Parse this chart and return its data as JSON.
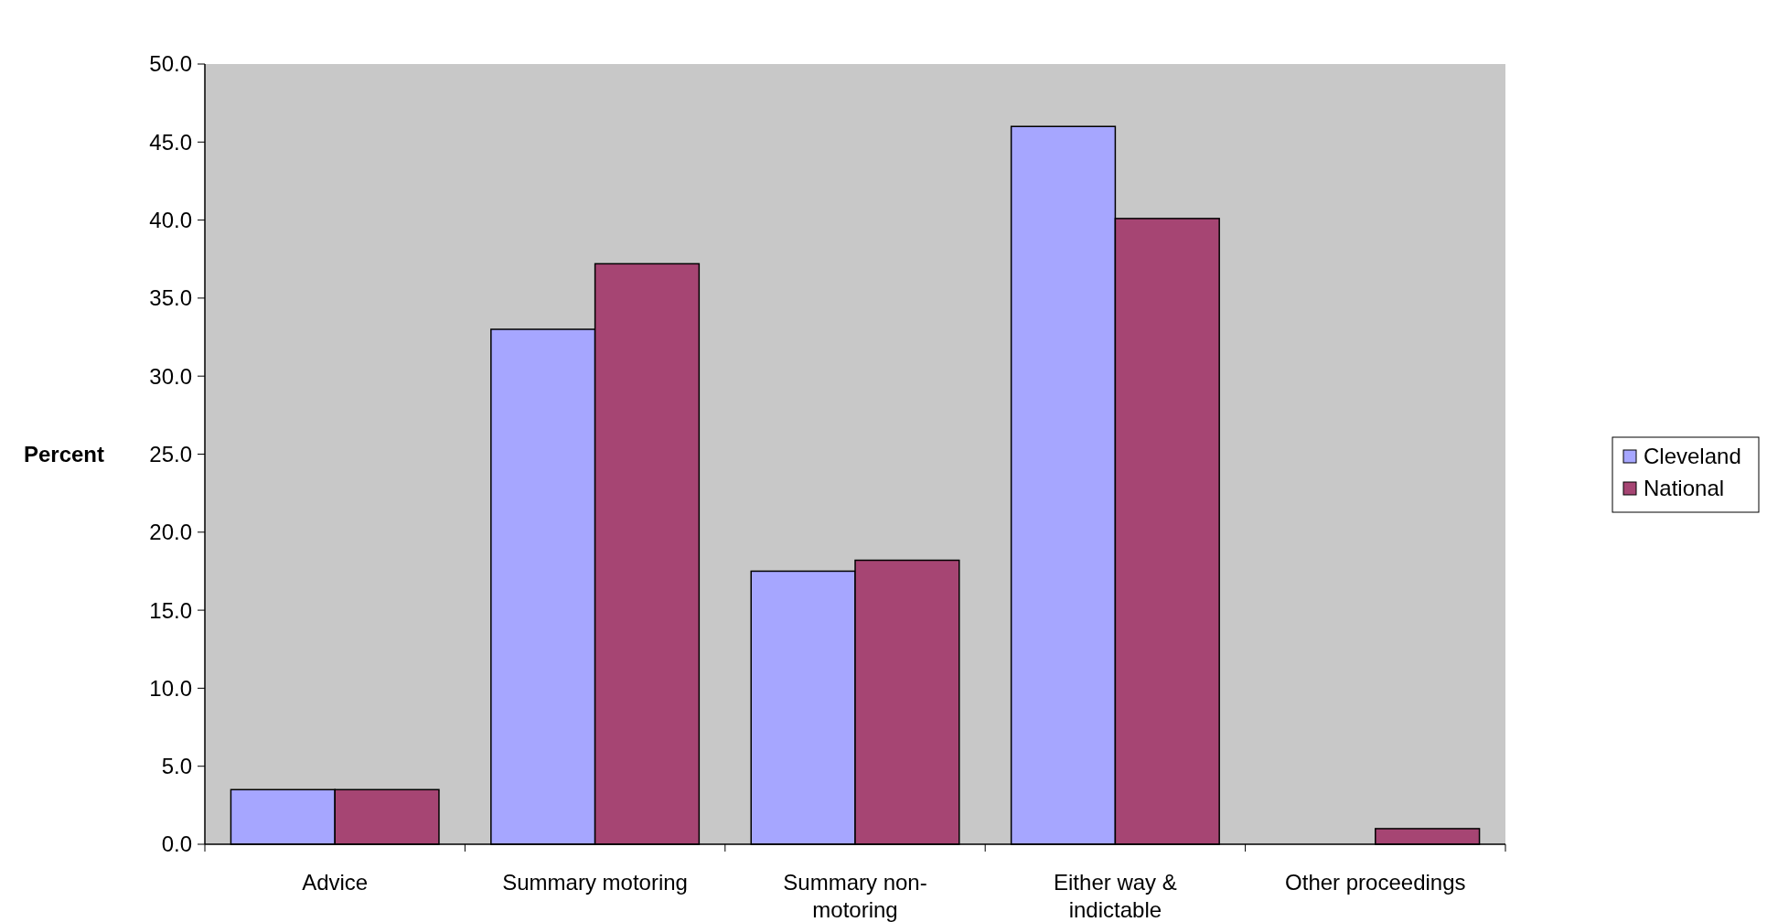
{
  "chart_data": {
    "type": "bar",
    "ylabel": "Percent",
    "categories": [
      "Advice",
      "Summary motoring",
      "Summary non-motoring",
      "Either way & indictable",
      "Other proceedings"
    ],
    "series": [
      {
        "name": "Cleveland",
        "color": "#a6a6ff",
        "values": [
          3.5,
          33.0,
          17.5,
          46.0,
          0.0
        ]
      },
      {
        "name": "National",
        "color": "#a64573",
        "values": [
          3.5,
          37.2,
          18.2,
          40.1,
          1.0
        ]
      }
    ],
    "ylim": [
      0,
      50
    ],
    "yticks": [
      {
        "value": 0,
        "label": "0.0"
      },
      {
        "value": 5,
        "label": "5.0"
      },
      {
        "value": 10,
        "label": "10.0"
      },
      {
        "value": 15,
        "label": "15.0"
      },
      {
        "value": 20,
        "label": "20.0"
      },
      {
        "value": 25,
        "label": "25.0"
      },
      {
        "value": 30,
        "label": "30.0"
      },
      {
        "value": 35,
        "label": "35.0"
      },
      {
        "value": 40,
        "label": "40.0"
      },
      {
        "value": 45,
        "label": "45.0"
      },
      {
        "value": 50,
        "label": "50.0"
      }
    ],
    "grid": false,
    "legend": "right"
  }
}
